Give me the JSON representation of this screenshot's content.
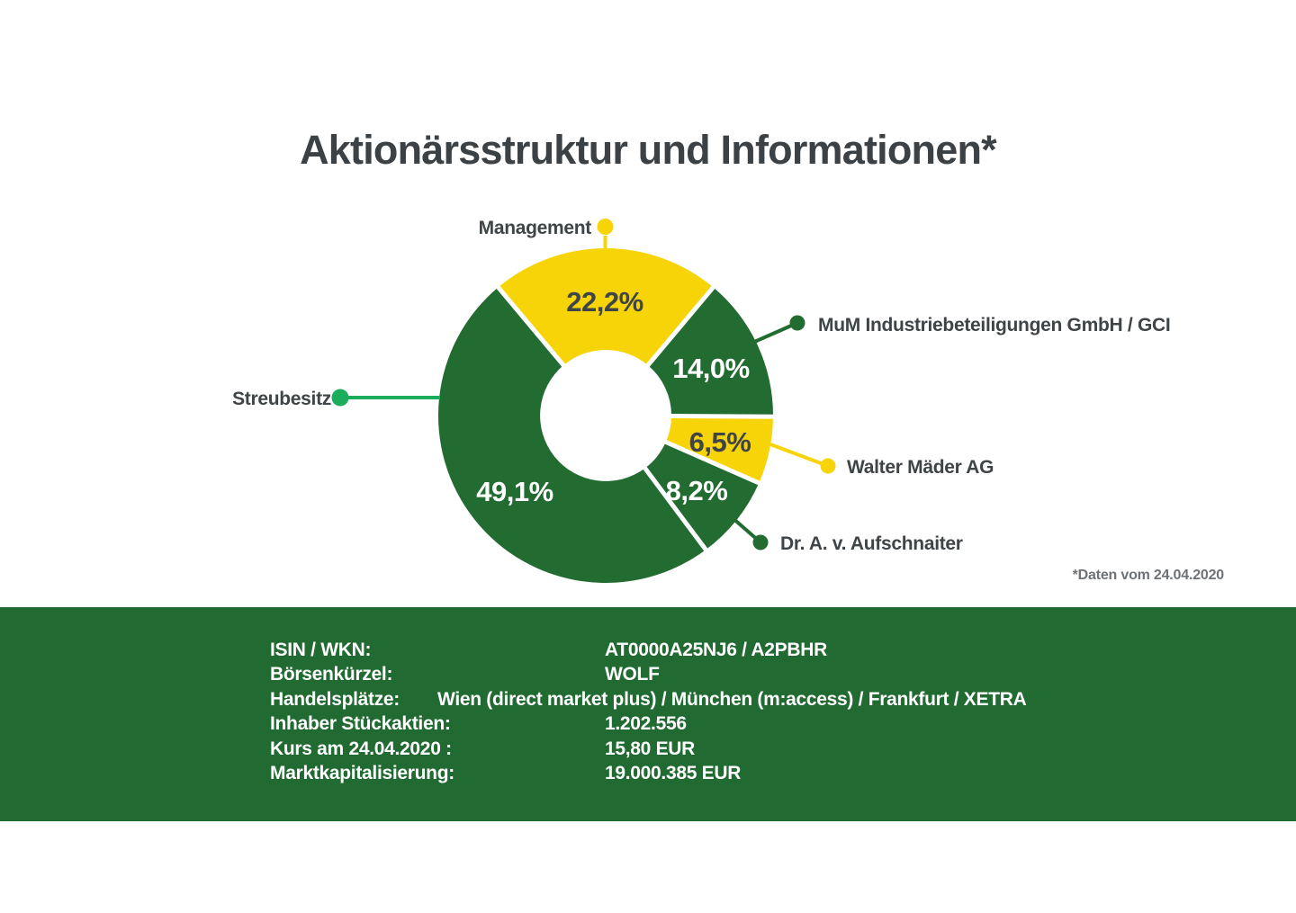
{
  "title": "Aktionärsstruktur und Informationen*",
  "footnote": "*Daten vom 24.04.2020",
  "colors": {
    "brand_green": "#226b31",
    "accent_yellow": "#f7d408",
    "bright_green": "#1cad5c",
    "label_gray": "#3f4447",
    "footnote_gray": "#6e7276",
    "bar_green": "#216a31",
    "gap_white": "#ffffff"
  },
  "chart_data": {
    "type": "pie",
    "donut": true,
    "title": "Aktionärsstruktur und Informationen*",
    "unit": "%",
    "start_angle_deg": -39.96,
    "legend_position": "around-slices-with-leader-lines",
    "slices": [
      {
        "label": "Management",
        "value": 22.2,
        "display": "22,2%",
        "color": "#f7d408",
        "text_color": "#3f4447",
        "dot_color": "#f7d408"
      },
      {
        "label": "MuM Industriebeteiligungen GmbH / GCI",
        "value": 14.0,
        "display": "14,0%",
        "color": "#226b31",
        "text_color": "#ffffff",
        "dot_color": "#226b31"
      },
      {
        "label": "Walter Mäder AG",
        "value": 6.5,
        "display": "6,5%",
        "color": "#f7d408",
        "text_color": "#3f4447",
        "dot_color": "#f7d408"
      },
      {
        "label": "Dr. A. v. Aufschnaiter",
        "value": 8.2,
        "display": "8,2%",
        "color": "#226b31",
        "text_color": "#ffffff",
        "dot_color": "#226b31"
      },
      {
        "label": "Streubesitz",
        "value": 49.1,
        "display": "49,1%",
        "color": "#226b31",
        "text_color": "#ffffff",
        "dot_color": "#1cad5c"
      }
    ]
  },
  "info_bar": {
    "rows": [
      {
        "label": "ISIN / WKN:",
        "value": "AT0000A25NJ6 / A2PBHR"
      },
      {
        "label": "Börsenkürzel:",
        "value": "WOLF"
      },
      {
        "label": "Handelsplätze:",
        "value": "Wien (direct market plus) / München (m:access) / Frankfurt / XETRA"
      },
      {
        "label": "Inhaber Stückaktien:",
        "value": "1.202.556"
      },
      {
        "label": "Kurs am 24.04.2020 :",
        "value": "15,80 EUR"
      },
      {
        "label": "Marktkapitalisierung:",
        "value": "19.000.385 EUR"
      }
    ]
  }
}
